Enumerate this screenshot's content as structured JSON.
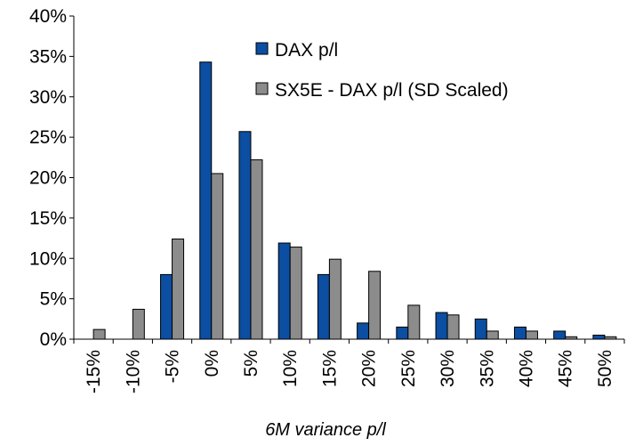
{
  "chart_data": {
    "type": "bar",
    "categories": [
      "-15%",
      "-10%",
      "-5%",
      "0%",
      "5%",
      "10%",
      "15%",
      "20%",
      "25%",
      "30%",
      "35%",
      "40%",
      "45%",
      "50%"
    ],
    "series": [
      {
        "name": "DAX p/l",
        "color": "#0B4EA2",
        "values": [
          0,
          0,
          8.0,
          34.3,
          25.7,
          11.9,
          8.0,
          2.0,
          1.5,
          3.3,
          2.5,
          1.5,
          1.0,
          0.5
        ]
      },
      {
        "name": "SX5E - DAX p/l (SD Scaled)",
        "color": "#8C8C8C",
        "values": [
          1.2,
          3.7,
          12.4,
          20.5,
          22.2,
          11.4,
          9.9,
          8.4,
          4.2,
          3.0,
          1.0,
          1.0,
          0.3,
          0.3
        ]
      }
    ],
    "ylim": [
      0,
      40
    ],
    "yticks": [
      "0%",
      "5%",
      "10%",
      "15%",
      "20%",
      "25%",
      "30%",
      "35%",
      "40%"
    ],
    "ytick_values": [
      0,
      5,
      10,
      15,
      20,
      25,
      30,
      35,
      40
    ],
    "xlabel": "6M variance p/l",
    "ylabel": "",
    "title": "",
    "grid": false,
    "legend_position": "top-right"
  }
}
